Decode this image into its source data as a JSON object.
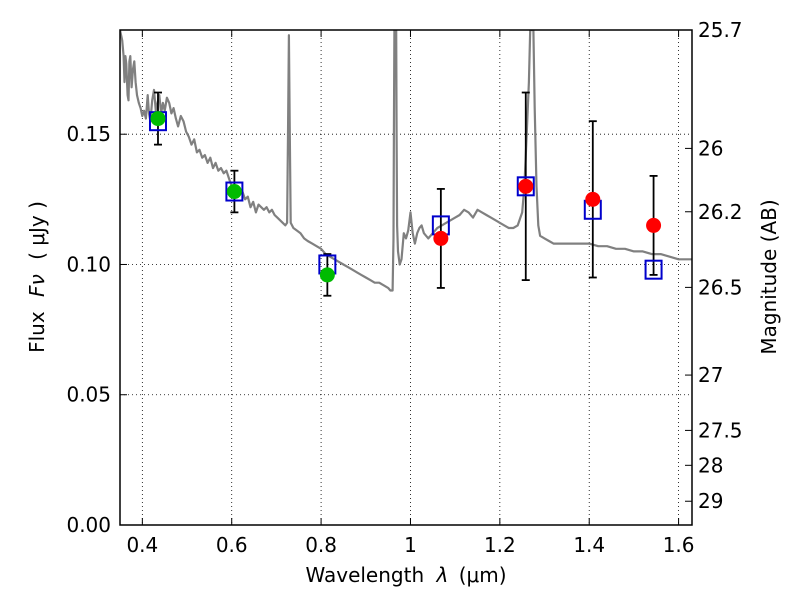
{
  "chart_data": {
    "type": "line",
    "xlabel_prefix": "Wavelength",
    "xlabel_symbol": "λ",
    "xlabel_unit": "(μm)",
    "ylabel_prefix": "Flux",
    "ylabel_symbol": "Fν",
    "ylabel_unit": "( μJy )",
    "y2label": "Magnitude (AB)",
    "xlim": [
      0.35,
      1.63
    ],
    "ylim": [
      0.0,
      0.19
    ],
    "grid": true,
    "x_ticks": [
      {
        "v": 0.4,
        "label": "0.4"
      },
      {
        "v": 0.6,
        "label": "0.6"
      },
      {
        "v": 0.8,
        "label": "0.8"
      },
      {
        "v": 1.0,
        "label": "1"
      },
      {
        "v": 1.2,
        "label": "1.2"
      },
      {
        "v": 1.4,
        "label": "1.4"
      },
      {
        "v": 1.6,
        "label": "1.6"
      }
    ],
    "y_ticks": [
      {
        "v": 0.0,
        "label": "0.00"
      },
      {
        "v": 0.05,
        "label": "0.05"
      },
      {
        "v": 0.1,
        "label": "0.10"
      },
      {
        "v": 0.15,
        "label": "0.15"
      }
    ],
    "y2_ticks": [
      {
        "mag": 25.7,
        "label": "25.7"
      },
      {
        "mag": 26.0,
        "label": "26"
      },
      {
        "mag": 26.2,
        "label": "26.2"
      },
      {
        "mag": 26.5,
        "label": "26.5"
      },
      {
        "mag": 27.0,
        "label": "27"
      },
      {
        "mag": 27.5,
        "label": "27.5"
      },
      {
        "mag": 28.0,
        "label": "28"
      },
      {
        "mag": 29.0,
        "label": "29"
      }
    ],
    "template_spectrum": {
      "color": "#808080",
      "points": [
        [
          0.35,
          0.19
        ],
        [
          0.355,
          0.186
        ],
        [
          0.358,
          0.18
        ],
        [
          0.36,
          0.17
        ],
        [
          0.362,
          0.18
        ],
        [
          0.364,
          0.177
        ],
        [
          0.367,
          0.165
        ],
        [
          0.369,
          0.163
        ],
        [
          0.371,
          0.178
        ],
        [
          0.373,
          0.18
        ],
        [
          0.376,
          0.168
        ],
        [
          0.379,
          0.175
        ],
        [
          0.382,
          0.178
        ],
        [
          0.385,
          0.17
        ],
        [
          0.388,
          0.165
        ],
        [
          0.392,
          0.162
        ],
        [
          0.396,
          0.16
        ],
        [
          0.4,
          0.157
        ],
        [
          0.404,
          0.159
        ],
        [
          0.408,
          0.156
        ],
        [
          0.412,
          0.165
        ],
        [
          0.415,
          0.158
        ],
        [
          0.418,
          0.155
        ],
        [
          0.422,
          0.163
        ],
        [
          0.426,
          0.167
        ],
        [
          0.43,
          0.159
        ],
        [
          0.434,
          0.162
        ],
        [
          0.438,
          0.165
        ],
        [
          0.442,
          0.158
        ],
        [
          0.446,
          0.162
        ],
        [
          0.45,
          0.159
        ],
        [
          0.455,
          0.164
        ],
        [
          0.46,
          0.162
        ],
        [
          0.465,
          0.158
        ],
        [
          0.47,
          0.16
        ],
        [
          0.475,
          0.156
        ],
        [
          0.48,
          0.153
        ],
        [
          0.486,
          0.157
        ],
        [
          0.492,
          0.155
        ],
        [
          0.498,
          0.151
        ],
        [
          0.504,
          0.149
        ],
        [
          0.51,
          0.146
        ],
        [
          0.516,
          0.148
        ],
        [
          0.522,
          0.143
        ],
        [
          0.528,
          0.144
        ],
        [
          0.534,
          0.141
        ],
        [
          0.54,
          0.142
        ],
        [
          0.546,
          0.139
        ],
        [
          0.552,
          0.141
        ],
        [
          0.558,
          0.137
        ],
        [
          0.564,
          0.139
        ],
        [
          0.57,
          0.136
        ],
        [
          0.576,
          0.137
        ],
        [
          0.582,
          0.135
        ],
        [
          0.588,
          0.136
        ],
        [
          0.594,
          0.133
        ],
        [
          0.6,
          0.13
        ],
        [
          0.606,
          0.129
        ],
        [
          0.612,
          0.13
        ],
        [
          0.618,
          0.127
        ],
        [
          0.624,
          0.128
        ],
        [
          0.63,
          0.125
        ],
        [
          0.636,
          0.126
        ],
        [
          0.642,
          0.122
        ],
        [
          0.648,
          0.124
        ],
        [
          0.654,
          0.12
        ],
        [
          0.66,
          0.123
        ],
        [
          0.666,
          0.122
        ],
        [
          0.672,
          0.121
        ],
        [
          0.678,
          0.122
        ],
        [
          0.684,
          0.12
        ],
        [
          0.69,
          0.121
        ],
        [
          0.696,
          0.119
        ],
        [
          0.702,
          0.118
        ],
        [
          0.708,
          0.117
        ],
        [
          0.714,
          0.116
        ],
        [
          0.72,
          0.115
        ],
        [
          0.724,
          0.116
        ],
        [
          0.726,
          0.15
        ],
        [
          0.728,
          0.188
        ],
        [
          0.73,
          0.15
        ],
        [
          0.732,
          0.116
        ],
        [
          0.738,
          0.114
        ],
        [
          0.746,
          0.113
        ],
        [
          0.754,
          0.112
        ],
        [
          0.762,
          0.11
        ],
        [
          0.77,
          0.109
        ],
        [
          0.78,
          0.108
        ],
        [
          0.79,
          0.107
        ],
        [
          0.8,
          0.106
        ],
        [
          0.81,
          0.104
        ],
        [
          0.82,
          0.103
        ],
        [
          0.83,
          0.102
        ],
        [
          0.84,
          0.101
        ],
        [
          0.85,
          0.1
        ],
        [
          0.86,
          0.099
        ],
        [
          0.87,
          0.098
        ],
        [
          0.88,
          0.097
        ],
        [
          0.89,
          0.096
        ],
        [
          0.9,
          0.095
        ],
        [
          0.91,
          0.094
        ],
        [
          0.92,
          0.093
        ],
        [
          0.93,
          0.093
        ],
        [
          0.94,
          0.092
        ],
        [
          0.95,
          0.091
        ],
        [
          0.955,
          0.09
        ],
        [
          0.96,
          0.09
        ],
        [
          0.962,
          0.11
        ],
        [
          0.963,
          0.15
        ],
        [
          0.964,
          0.19
        ],
        [
          0.968,
          0.19
        ],
        [
          0.969,
          0.15
        ],
        [
          0.97,
          0.115
        ],
        [
          0.972,
          0.105
        ],
        [
          0.976,
          0.1
        ],
        [
          0.98,
          0.102
        ],
        [
          0.985,
          0.112
        ],
        [
          0.99,
          0.11
        ],
        [
          0.995,
          0.113
        ],
        [
          1.0,
          0.12
        ],
        [
          1.005,
          0.112
        ],
        [
          1.01,
          0.108
        ],
        [
          1.015,
          0.112
        ],
        [
          1.02,
          0.114
        ],
        [
          1.025,
          0.115
        ],
        [
          1.03,
          0.112
        ],
        [
          1.04,
          0.11
        ],
        [
          1.05,
          0.112
        ],
        [
          1.06,
          0.114
        ],
        [
          1.07,
          0.115
        ],
        [
          1.08,
          0.116
        ],
        [
          1.09,
          0.117
        ],
        [
          1.1,
          0.118
        ],
        [
          1.11,
          0.119
        ],
        [
          1.12,
          0.121
        ],
        [
          1.13,
          0.12
        ],
        [
          1.14,
          0.118
        ],
        [
          1.15,
          0.121
        ],
        [
          1.16,
          0.12
        ],
        [
          1.17,
          0.119
        ],
        [
          1.18,
          0.118
        ],
        [
          1.19,
          0.117
        ],
        [
          1.2,
          0.116
        ],
        [
          1.21,
          0.115
        ],
        [
          1.22,
          0.114
        ],
        [
          1.23,
          0.114
        ],
        [
          1.24,
          0.115
        ],
        [
          1.25,
          0.12
        ],
        [
          1.255,
          0.13
        ],
        [
          1.26,
          0.15
        ],
        [
          1.265,
          0.17
        ],
        [
          1.268,
          0.19
        ],
        [
          1.275,
          0.19
        ],
        [
          1.278,
          0.16
        ],
        [
          1.282,
          0.13
        ],
        [
          1.286,
          0.115
        ],
        [
          1.29,
          0.111
        ],
        [
          1.3,
          0.11
        ],
        [
          1.31,
          0.109
        ],
        [
          1.32,
          0.108
        ],
        [
          1.34,
          0.108
        ],
        [
          1.36,
          0.108
        ],
        [
          1.38,
          0.108
        ],
        [
          1.4,
          0.108
        ],
        [
          1.42,
          0.107
        ],
        [
          1.44,
          0.107
        ],
        [
          1.46,
          0.106
        ],
        [
          1.48,
          0.106
        ],
        [
          1.5,
          0.105
        ],
        [
          1.52,
          0.105
        ],
        [
          1.54,
          0.104
        ],
        [
          1.56,
          0.104
        ],
        [
          1.58,
          0.103
        ],
        [
          1.6,
          0.102
        ],
        [
          1.63,
          0.102
        ]
      ]
    },
    "model_boxes": {
      "color": "#0000cc",
      "points": [
        {
          "x": 0.435,
          "y": 0.155
        },
        {
          "x": 0.606,
          "y": 0.128
        },
        {
          "x": 0.814,
          "y": 0.1
        },
        {
          "x": 1.068,
          "y": 0.115
        },
        {
          "x": 1.258,
          "y": 0.13
        },
        {
          "x": 1.408,
          "y": 0.121
        },
        {
          "x": 1.544,
          "y": 0.098
        }
      ]
    },
    "observed_optical": {
      "color": "#00bb00",
      "points": [
        {
          "x": 0.435,
          "y": 0.156,
          "err": 0.01
        },
        {
          "x": 0.606,
          "y": 0.128,
          "err": 0.008
        },
        {
          "x": 0.814,
          "y": 0.096,
          "err": 0.008
        }
      ]
    },
    "observed_nir": {
      "color": "#ff0000",
      "points": [
        {
          "x": 1.068,
          "y": 0.11,
          "err": 0.019
        },
        {
          "x": 1.258,
          "y": 0.13,
          "err": 0.036
        },
        {
          "x": 1.408,
          "y": 0.125,
          "err": 0.03
        },
        {
          "x": 1.544,
          "y": 0.115,
          "err": 0.019
        }
      ]
    }
  }
}
